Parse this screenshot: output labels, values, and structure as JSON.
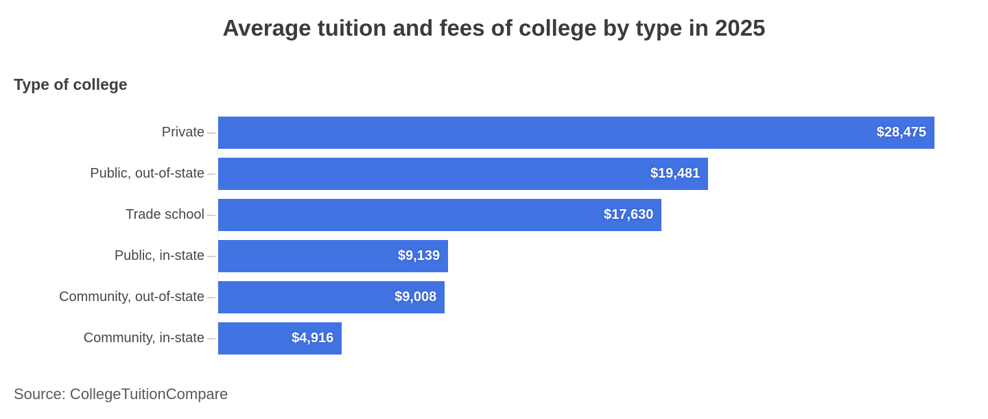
{
  "chart_data": {
    "type": "bar",
    "orientation": "horizontal",
    "title": "Average tuition and fees of college by type in 2025",
    "axis_label": "Type of college",
    "categories": [
      "Private",
      "Public, out-of-state",
      "Trade school",
      "Public, in-state",
      "Community, out-of-state",
      "Community, in-state"
    ],
    "values": [
      28475,
      19481,
      17630,
      9139,
      9008,
      4916
    ],
    "value_labels": [
      "$28,475",
      "$19,481",
      "$17,630",
      "$9,139",
      "$9,008",
      "$4,916"
    ],
    "xlim": [
      0,
      28475
    ],
    "grid": false,
    "legend": "none",
    "source": "Source: CollegeTuitionCompare",
    "colors": {
      "bar": "#4273E3",
      "value_label": "#FFFFFF",
      "title": "#3B3B3B",
      "category_label": "#474747",
      "source_text": "#595959"
    }
  }
}
